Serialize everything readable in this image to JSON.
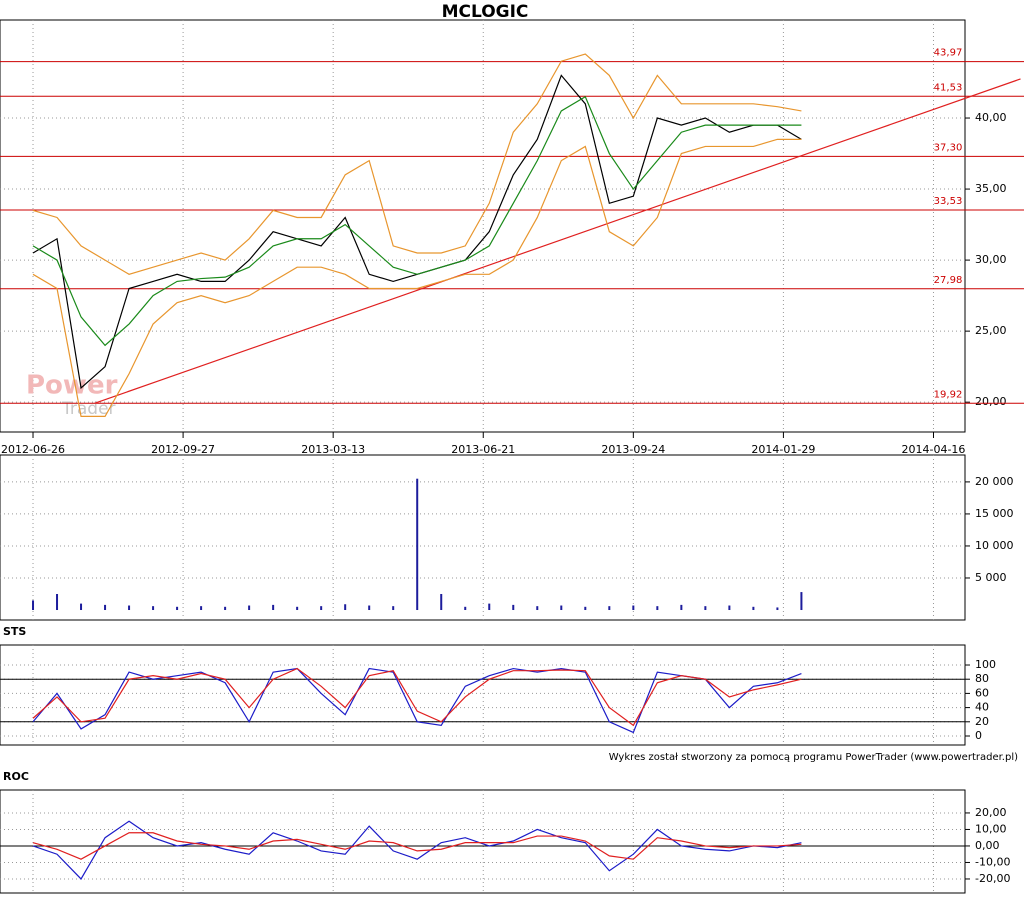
{
  "chart_data": [
    {
      "type": "line",
      "title": "MCLOGIC",
      "watermark": [
        "Power",
        "Trader"
      ],
      "x": [
        0,
        16,
        32,
        48,
        64,
        80,
        96,
        112,
        128,
        144,
        160,
        176,
        192,
        208,
        224,
        240,
        256,
        272,
        288,
        304,
        320,
        336,
        352,
        368,
        384,
        400,
        416,
        432,
        448,
        464,
        480,
        496,
        512
      ],
      "xlim": [
        -22,
        621
      ],
      "xticks": [
        {
          "value": 0,
          "label": "2012-06-26"
        },
        {
          "value": 100,
          "label": "2012-09-27"
        },
        {
          "value": 200,
          "label": "2013-03-13"
        },
        {
          "value": 300,
          "label": "2013-06-21"
        },
        {
          "value": 400,
          "label": "2013-09-24"
        },
        {
          "value": 500,
          "label": "2014-01-29"
        },
        {
          "value": 600,
          "label": "2014-04-16"
        }
      ],
      "ylim": [
        17.9,
        46.9
      ],
      "yticks": [
        {
          "value": 20,
          "label": "20,00"
        },
        {
          "value": 25,
          "label": "25,00"
        },
        {
          "value": 30,
          "label": "30,00"
        },
        {
          "value": 35,
          "label": "35,00"
        },
        {
          "value": 40,
          "label": "40,00"
        }
      ],
      "levels": [
        {
          "value": 43.97,
          "label": "43,97"
        },
        {
          "value": 41.53,
          "label": "41,53"
        },
        {
          "value": 37.3,
          "label": "37,30"
        },
        {
          "value": 33.53,
          "label": "33,53"
        },
        {
          "value": 27.98,
          "label": "27,98"
        },
        {
          "value": 19.92,
          "label": "19,92"
        }
      ],
      "level_color": "#cc0000",
      "trendline": {
        "x": [
          41,
          658
        ],
        "y": [
          19.92,
          42.75
        ],
        "color": "#e02020"
      },
      "series": [
        {
          "color": "#000000",
          "values": [
            30.5,
            31.5,
            21,
            22.5,
            28,
            28.5,
            29,
            28.5,
            28.5,
            30,
            32,
            31.5,
            31,
            33,
            29,
            28.5,
            29,
            29.5,
            30,
            32,
            36,
            38.5,
            43,
            41,
            34,
            34.5,
            40,
            39.5,
            40,
            39,
            39.5,
            39.5,
            38.5
          ]
        },
        {
          "color": "#1a8a1a",
          "values": [
            31,
            30,
            26,
            24,
            25.5,
            27.5,
            28.5,
            28.7,
            28.8,
            29.5,
            31,
            31.5,
            31.5,
            32.5,
            31,
            29.5,
            29,
            29.5,
            30,
            31,
            34,
            37,
            40.5,
            41.5,
            37.5,
            35,
            37,
            39,
            39.5,
            39.5,
            39.5,
            39.5,
            39.5
          ]
        },
        {
          "color": "#e8962e",
          "values": [
            33.5,
            33,
            31,
            30,
            29,
            29.5,
            30,
            30.5,
            30,
            31.5,
            33.5,
            33,
            33,
            36,
            37,
            31,
            30.5,
            30.5,
            31,
            34,
            39,
            41,
            44,
            44.5,
            43,
            40,
            43,
            41,
            41,
            41,
            41,
            40.8,
            40.5
          ]
        },
        {
          "color": "#e8962e",
          "values": [
            29,
            28,
            19,
            19,
            22,
            25.5,
            27,
            27.5,
            27,
            27.5,
            28.5,
            29.5,
            29.5,
            29,
            28,
            28,
            28,
            28.5,
            29,
            29,
            30,
            33,
            37,
            38,
            32,
            31,
            33,
            37.5,
            38,
            38,
            38,
            38.5,
            38.5
          ]
        }
      ]
    },
    {
      "type": "bar",
      "color": "#1c1c9c",
      "x": [
        0,
        16,
        32,
        48,
        64,
        80,
        96,
        112,
        128,
        144,
        160,
        176,
        192,
        208,
        224,
        240,
        256,
        272,
        288,
        304,
        320,
        336,
        352,
        368,
        384,
        400,
        416,
        432,
        448,
        464,
        480,
        496,
        512
      ],
      "xlim": [
        -22,
        621
      ],
      "values": [
        1500,
        2500,
        1000,
        800,
        700,
        600,
        500,
        600,
        500,
        700,
        800,
        500,
        600,
        900,
        700,
        600,
        20500,
        2500,
        500,
        1000,
        800,
        600,
        700,
        500,
        600,
        700,
        600,
        800,
        600,
        700,
        500,
        400,
        2800
      ],
      "ylim": [
        -1560,
        24200
      ],
      "yticks": [
        {
          "value": 5000,
          "label": "5 000"
        },
        {
          "value": 10000,
          "label": "10 000"
        },
        {
          "value": 15000,
          "label": "15 000"
        },
        {
          "value": 20000,
          "label": "20 000"
        }
      ]
    },
    {
      "type": "line",
      "title": "STS",
      "x": [
        0,
        16,
        32,
        48,
        64,
        80,
        96,
        112,
        128,
        144,
        160,
        176,
        192,
        208,
        224,
        240,
        256,
        272,
        288,
        304,
        320,
        336,
        352,
        368,
        384,
        400,
        416,
        432,
        448,
        464,
        480,
        496,
        512
      ],
      "xlim": [
        -22,
        621
      ],
      "ylim": [
        -12.7,
        128.2
      ],
      "yticks": [
        0,
        20,
        40,
        60,
        80,
        100
      ],
      "reference_lines": [
        20,
        80
      ],
      "note": "Wykres został stworzony za pomocą programu PowerTrader (www.powertrader.pl)",
      "series": [
        {
          "color": "#1c1cc8",
          "values": [
            20,
            60,
            10,
            30,
            90,
            80,
            85,
            90,
            75,
            20,
            90,
            95,
            60,
            30,
            95,
            90,
            20,
            15,
            70,
            85,
            95,
            90,
            95,
            90,
            20,
            5,
            90,
            85,
            80,
            40,
            70,
            75,
            88
          ]
        },
        {
          "color": "#e02020",
          "values": [
            25,
            55,
            20,
            25,
            80,
            85,
            80,
            88,
            80,
            40,
            80,
            95,
            70,
            40,
            85,
            92,
            35,
            20,
            55,
            80,
            92,
            92,
            93,
            92,
            40,
            15,
            75,
            85,
            80,
            55,
            65,
            72,
            80
          ]
        }
      ]
    },
    {
      "type": "line",
      "title": "ROC",
      "x": [
        0,
        16,
        32,
        48,
        64,
        80,
        96,
        112,
        128,
        144,
        160,
        176,
        192,
        208,
        224,
        240,
        256,
        272,
        288,
        304,
        320,
        336,
        352,
        368,
        384,
        400,
        416,
        432,
        448,
        464,
        480,
        496,
        512
      ],
      "xlim": [
        -22,
        621
      ],
      "ylim": [
        -28.5,
        33.9
      ],
      "yticks": [
        {
          "value": -20,
          "label": "-20,00"
        },
        {
          "value": -10,
          "label": "-10,00"
        },
        {
          "value": 0,
          "label": "0,00"
        },
        {
          "value": 10,
          "label": "10,00"
        },
        {
          "value": 20,
          "label": "20,00"
        }
      ],
      "reference_lines": [
        0
      ],
      "series": [
        {
          "color": "#1c1cc8",
          "values": [
            0,
            -5,
            -20,
            5,
            15,
            5,
            0,
            2,
            -2,
            -5,
            8,
            3,
            -3,
            -5,
            12,
            -3,
            -8,
            2,
            5,
            0,
            3,
            10,
            5,
            2,
            -15,
            -5,
            10,
            0,
            -2,
            -3,
            0,
            -1,
            2
          ]
        },
        {
          "color": "#e02020",
          "values": [
            2,
            -2,
            -8,
            0,
            8,
            8,
            3,
            1,
            0,
            -2,
            3,
            4,
            1,
            -2,
            3,
            2,
            -3,
            -2,
            2,
            2,
            2,
            6,
            6,
            3,
            -6,
            -8,
            5,
            3,
            0,
            -1,
            0,
            0,
            1
          ]
        }
      ]
    }
  ]
}
